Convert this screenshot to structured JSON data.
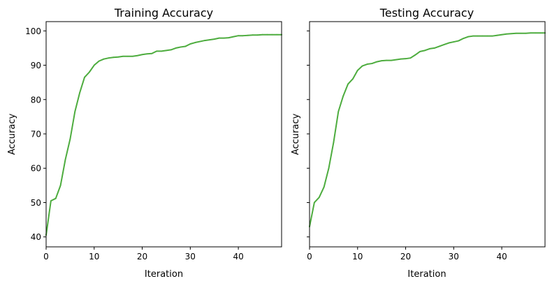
{
  "chart_data": [
    {
      "type": "line",
      "title": "Training Accuracy",
      "xlabel": "Iteration",
      "ylabel": "Accuracy",
      "xlim": [
        0,
        49
      ],
      "ylim": [
        37.1,
        102.7
      ],
      "xticks": [
        0,
        10,
        20,
        30,
        40
      ],
      "yticks": [
        40,
        50,
        60,
        70,
        80,
        90,
        100
      ],
      "grid": false,
      "color": "#4dac3e",
      "series": [
        {
          "x": [
            0,
            1,
            2,
            3,
            4,
            5,
            6,
            7,
            8,
            9,
            10,
            11,
            12,
            13,
            14,
            15,
            16,
            17,
            18,
            19,
            20,
            21,
            22,
            23,
            24,
            25,
            26,
            27,
            28,
            29,
            30,
            31,
            32,
            33,
            34,
            35,
            36,
            37,
            38,
            39,
            40,
            41,
            42,
            43,
            44,
            45,
            46,
            47,
            48,
            49
          ],
          "values": [
            40.5,
            50.5,
            51.2,
            55.0,
            62.5,
            68.5,
            76.5,
            82.0,
            86.5,
            88.0,
            90.0,
            91.2,
            91.8,
            92.1,
            92.3,
            92.4,
            92.6,
            92.6,
            92.6,
            92.8,
            93.1,
            93.3,
            93.4,
            94.1,
            94.1,
            94.3,
            94.5,
            95.0,
            95.3,
            95.5,
            96.2,
            96.6,
            96.9,
            97.2,
            97.4,
            97.6,
            97.9,
            97.9,
            98.0,
            98.3,
            98.6,
            98.6,
            98.7,
            98.8,
            98.8,
            98.9,
            98.9,
            98.9,
            98.9,
            98.9
          ]
        }
      ]
    },
    {
      "type": "line",
      "title": "Testing Accuracy",
      "xlabel": "Iteration",
      "ylabel": "Accuracy",
      "xlim": [
        0,
        49
      ],
      "ylim": [
        37.1,
        102.7
      ],
      "xticks": [
        0,
        10,
        20,
        30,
        40
      ],
      "yticks": [
        40,
        50,
        60,
        70,
        80,
        90,
        100
      ],
      "grid": false,
      "color": "#4dac3e",
      "series": [
        {
          "x": [
            0,
            1,
            2,
            3,
            4,
            5,
            6,
            7,
            8,
            9,
            10,
            11,
            12,
            13,
            14,
            15,
            16,
            17,
            18,
            19,
            20,
            21,
            22,
            23,
            24,
            25,
            26,
            27,
            28,
            29,
            30,
            31,
            32,
            33,
            34,
            35,
            36,
            37,
            38,
            39,
            40,
            41,
            42,
            43,
            44,
            45,
            46,
            47,
            48,
            49
          ],
          "values": [
            43.0,
            50.0,
            51.5,
            54.5,
            60.0,
            67.5,
            76.5,
            81.0,
            84.5,
            86.0,
            88.5,
            89.8,
            90.3,
            90.5,
            91.0,
            91.3,
            91.4,
            91.4,
            91.6,
            91.8,
            91.9,
            92.1,
            93.0,
            94.0,
            94.3,
            94.8,
            95.0,
            95.5,
            96.0,
            96.5,
            96.8,
            97.1,
            97.8,
            98.3,
            98.5,
            98.5,
            98.5,
            98.5,
            98.5,
            98.7,
            98.9,
            99.1,
            99.2,
            99.3,
            99.3,
            99.3,
            99.4,
            99.4,
            99.4,
            99.4
          ]
        }
      ]
    }
  ]
}
